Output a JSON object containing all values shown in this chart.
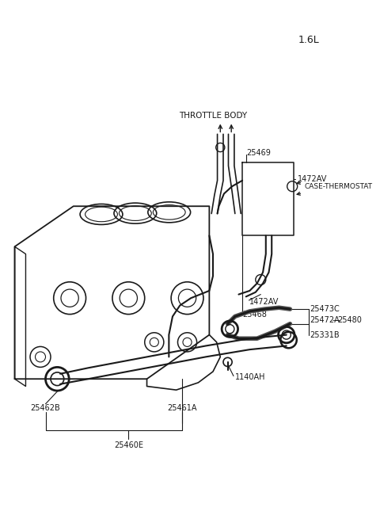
{
  "bg_color": "#ffffff",
  "line_color": "#1a1a1a",
  "label_color": "#1a1a1a",
  "title_text": "1.6L",
  "title_fontsize": 9,
  "label_fontsize": 7,
  "throttle_label": "THROTTLE BODY",
  "thermostat_label": "CASE-THERMOSTAT"
}
